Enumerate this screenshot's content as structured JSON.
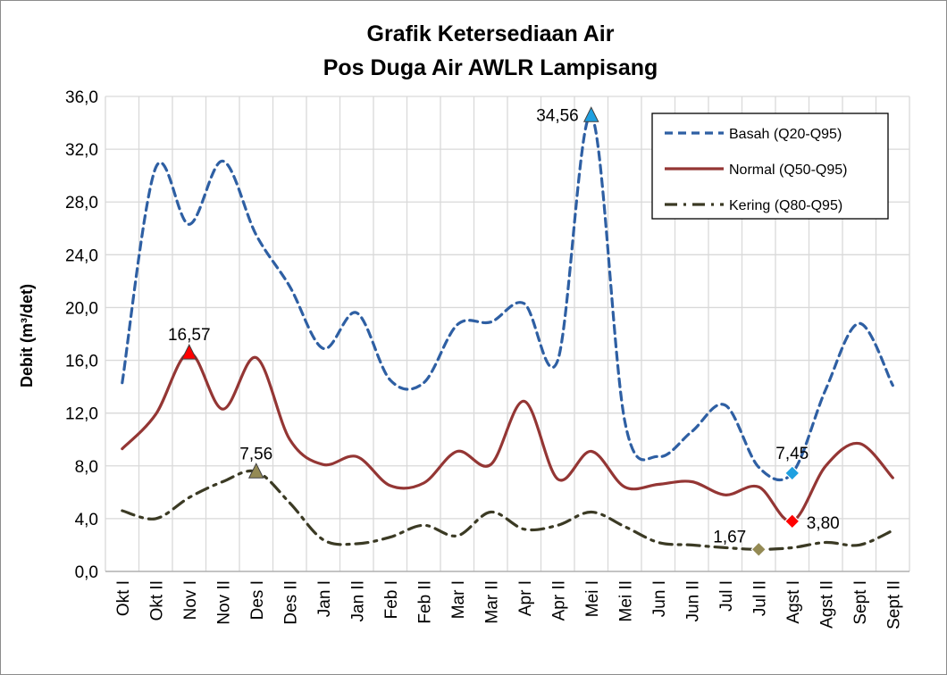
{
  "chart_data": {
    "type": "line",
    "title": "Grafik Ketersediaan Air",
    "subtitle": "Pos Duga Air AWLR Lampisang",
    "ylabel": "Debit (m³/det)",
    "xlabel": "",
    "ylim": [
      0,
      36
    ],
    "yticks": [
      "0,0",
      "4,0",
      "8,0",
      "12,0",
      "16,0",
      "20,0",
      "24,0",
      "28,0",
      "32,0",
      "36,0"
    ],
    "grid": true,
    "legend_position": "top-right",
    "categories": [
      "Okt I",
      "Okt II",
      "Nov I",
      "Nov II",
      "Des I",
      "Des II",
      "Jan I",
      "Jan II",
      "Feb I",
      "Feb II",
      "Mar I",
      "Mar II",
      "Apr I",
      "Apr II",
      "Mei I",
      "Mei II",
      "Jun I",
      "Jun II",
      "Jul I",
      "Jul II",
      "Agst I",
      "Agst II",
      "Sept I",
      "Sept II"
    ],
    "series": [
      {
        "name": "Basah (Q20-Q95)",
        "color": "#2e5fa3",
        "dash": "dash",
        "values": [
          14.3,
          30.6,
          26.3,
          31.1,
          25.5,
          21.6,
          16.9,
          19.6,
          14.5,
          14.3,
          18.7,
          18.9,
          20.3,
          16.0,
          34.56,
          11.4,
          8.7,
          10.6,
          12.6,
          7.9,
          7.45,
          13.8,
          18.8,
          14.1
        ],
        "marker": {
          "index": 14,
          "label": "34,56",
          "shape": "triangle",
          "color": "#1fa0e0"
        },
        "marker2": {
          "index": 20,
          "label": "7,45",
          "shape": "diamond",
          "color": "#1fa0e0"
        }
      },
      {
        "name": "Normal (Q50-Q95)",
        "color": "#943634",
        "dash": "solid",
        "values": [
          9.3,
          11.9,
          16.57,
          12.3,
          16.2,
          10.0,
          8.1,
          8.7,
          6.5,
          6.7,
          9.1,
          8.1,
          12.9,
          7.0,
          9.1,
          6.4,
          6.6,
          6.8,
          5.8,
          6.4,
          3.8,
          8.0,
          9.7,
          7.1
        ],
        "marker": {
          "index": 2,
          "label": "16,57",
          "shape": "triangle",
          "color": "#ff0000"
        },
        "marker2": {
          "index": 20,
          "label": "3,80",
          "shape": "diamond",
          "color": "#ff0000"
        }
      },
      {
        "name": "Kering (Q80-Q95)",
        "color": "#3b3a24",
        "dash": "dashdot",
        "values": [
          4.6,
          4.0,
          5.6,
          6.8,
          7.56,
          5.2,
          2.4,
          2.1,
          2.6,
          3.5,
          2.7,
          4.5,
          3.2,
          3.5,
          4.5,
          3.4,
          2.2,
          2.0,
          1.8,
          1.67,
          1.8,
          2.2,
          2.0,
          3.1
        ],
        "marker": {
          "index": 4,
          "label": "7,56",
          "shape": "triangle",
          "color": "#948a54"
        },
        "marker2": {
          "index": 19,
          "label": "1,67",
          "shape": "diamond",
          "color": "#948a54"
        }
      }
    ]
  }
}
